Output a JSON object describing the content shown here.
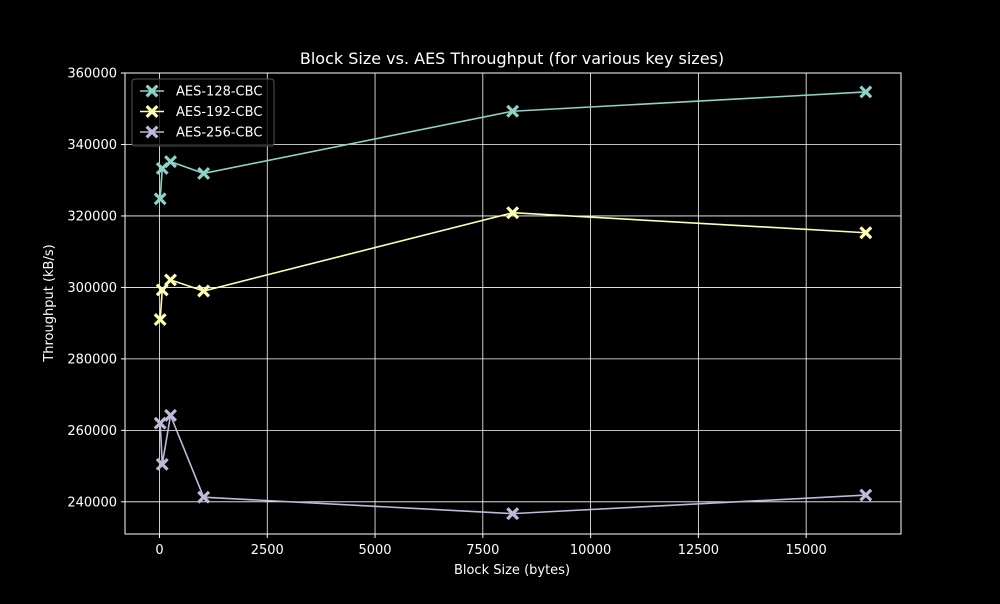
{
  "chart_data": {
    "type": "line",
    "title": "Block Size vs. AES Throughput (for various key sizes)",
    "xlabel": "Block Size (bytes)",
    "ylabel": "Throughput (kB/s)",
    "xlim": [
      -800,
      17200
    ],
    "ylim": [
      231000,
      360000
    ],
    "xticks": [
      0,
      2500,
      5000,
      7500,
      10000,
      12500,
      15000
    ],
    "yticks": [
      240000,
      260000,
      280000,
      300000,
      320000,
      340000,
      360000
    ],
    "grid": true,
    "legend_position": "top-left",
    "marker": "X",
    "series": [
      {
        "name": "AES-128-CBC",
        "color": "#8dd3c7",
        "x": [
          16,
          64,
          256,
          1024,
          8192,
          16384
        ],
        "y": [
          324800,
          333300,
          335200,
          331900,
          349300,
          354700
        ]
      },
      {
        "name": "AES-192-CBC",
        "color": "#ffffb3",
        "x": [
          16,
          64,
          256,
          1024,
          8192,
          16384
        ],
        "y": [
          291000,
          299300,
          302100,
          299000,
          320900,
          315300
        ]
      },
      {
        "name": "AES-256-CBC",
        "color": "#bebada",
        "x": [
          16,
          64,
          256,
          1024,
          8192,
          16384
        ],
        "y": [
          262000,
          250500,
          264200,
          241300,
          236700,
          241900
        ]
      }
    ]
  }
}
